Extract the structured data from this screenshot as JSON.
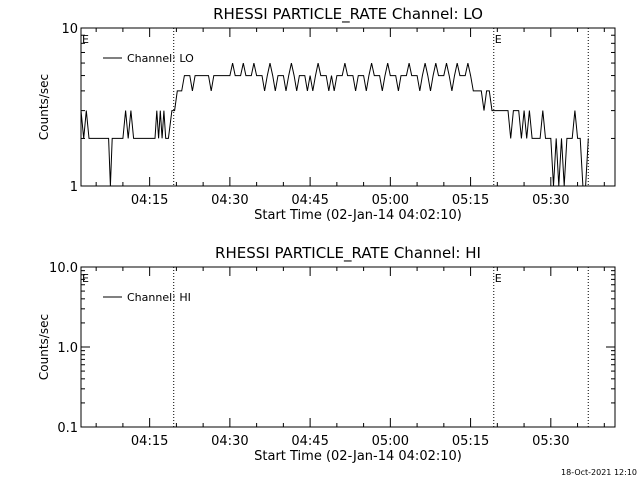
{
  "chart_data": [
    {
      "type": "line",
      "title": "RHESSI PARTICLE_RATE Channel: LO",
      "xlabel": "Start Time (02-Jan-14 04:02:10)",
      "ylabel": "Counts/sec",
      "y_scale": "log",
      "ylim": [
        1,
        10
      ],
      "y_ticks": [
        {
          "value": 1,
          "label": "1"
        },
        {
          "value": 10,
          "label": "10"
        }
      ],
      "xlim": [
        "04:02:10",
        "05:42:00"
      ],
      "x_ticks": [
        "04:15",
        "04:30",
        "04:45",
        "05:00",
        "05:15",
        "05:30"
      ],
      "legend": {
        "label": "Channel: LO",
        "position": "top-left"
      },
      "event_markers": [
        {
          "time": "04:02:10",
          "label": "E",
          "line": false
        },
        {
          "time": "04:19:30",
          "label": "",
          "line": true
        },
        {
          "time": "05:19:20",
          "label": "E",
          "line": true
        },
        {
          "time": "05:37:00",
          "label": "",
          "line": true
        }
      ],
      "series": [
        {
          "name": "Channel: LO",
          "points": [
            [
              "04:02:10",
              3
            ],
            [
              "04:02:40",
              2
            ],
            [
              "04:03:10",
              3
            ],
            [
              "04:03:40",
              2
            ],
            [
              "04:07:20",
              2
            ],
            [
              "04:07:40",
              1
            ],
            [
              "04:08:00",
              2
            ],
            [
              "04:10:00",
              2
            ],
            [
              "04:10:30",
              3
            ],
            [
              "04:11:00",
              2
            ],
            [
              "04:11:30",
              3
            ],
            [
              "04:12:00",
              2
            ],
            [
              "04:16:00",
              2
            ],
            [
              "04:16:20",
              3
            ],
            [
              "04:16:40",
              2
            ],
            [
              "04:17:00",
              3
            ],
            [
              "04:17:20",
              2
            ],
            [
              "04:17:40",
              3
            ],
            [
              "04:18:00",
              2
            ],
            [
              "04:18:30",
              2
            ],
            [
              "04:19:10",
              3
            ],
            [
              "04:19:40",
              3
            ],
            [
              "04:20:10",
              4
            ],
            [
              "04:21:00",
              4
            ],
            [
              "04:21:30",
              5
            ],
            [
              "04:22:30",
              5
            ],
            [
              "04:23:00",
              4
            ],
            [
              "04:23:30",
              5
            ],
            [
              "04:26:00",
              5
            ],
            [
              "04:26:30",
              4
            ],
            [
              "04:27:00",
              5
            ],
            [
              "04:30:00",
              5
            ],
            [
              "04:30:30",
              6
            ],
            [
              "04:31:00",
              5
            ],
            [
              "04:32:00",
              5
            ],
            [
              "04:32:30",
              6
            ],
            [
              "04:33:00",
              5
            ],
            [
              "04:34:00",
              5
            ],
            [
              "04:34:30",
              6
            ],
            [
              "04:35:00",
              5
            ],
            [
              "04:36:00",
              5
            ],
            [
              "04:36:30",
              4
            ],
            [
              "04:37:00",
              5
            ],
            [
              "04:37:30",
              6
            ],
            [
              "04:38:00",
              5
            ],
            [
              "04:38:30",
              4
            ],
            [
              "04:39:00",
              5
            ],
            [
              "04:40:00",
              5
            ],
            [
              "04:40:30",
              4
            ],
            [
              "04:41:00",
              5
            ],
            [
              "04:41:30",
              6
            ],
            [
              "04:42:00",
              5
            ],
            [
              "04:42:30",
              4
            ],
            [
              "04:43:00",
              5
            ],
            [
              "04:44:00",
              5
            ],
            [
              "04:44:30",
              4
            ],
            [
              "04:45:00",
              5
            ],
            [
              "04:45:30",
              4
            ],
            [
              "04:46:00",
              5
            ],
            [
              "04:46:30",
              6
            ],
            [
              "04:47:00",
              5
            ],
            [
              "04:48:00",
              5
            ],
            [
              "04:48:30",
              4
            ],
            [
              "04:49:00",
              5
            ],
            [
              "04:49:30",
              4
            ],
            [
              "04:50:00",
              5
            ],
            [
              "04:51:00",
              5
            ],
            [
              "04:51:30",
              6
            ],
            [
              "04:52:00",
              5
            ],
            [
              "04:53:00",
              5
            ],
            [
              "04:53:30",
              4
            ],
            [
              "04:54:00",
              5
            ],
            [
              "04:55:00",
              5
            ],
            [
              "04:55:30",
              4
            ],
            [
              "04:56:00",
              5
            ],
            [
              "04:56:30",
              6
            ],
            [
              "04:57:00",
              5
            ],
            [
              "04:58:00",
              5
            ],
            [
              "04:58:30",
              4
            ],
            [
              "04:59:00",
              5
            ],
            [
              "04:59:30",
              6
            ],
            [
              "05:00:00",
              5
            ],
            [
              "05:01:00",
              5
            ],
            [
              "05:01:30",
              4
            ],
            [
              "05:02:00",
              5
            ],
            [
              "05:03:00",
              5
            ],
            [
              "05:03:30",
              6
            ],
            [
              "05:04:00",
              5
            ],
            [
              "05:05:00",
              5
            ],
            [
              "05:05:30",
              4
            ],
            [
              "05:06:00",
              5
            ],
            [
              "05:06:30",
              6
            ],
            [
              "05:07:00",
              5
            ],
            [
              "05:07:30",
              4
            ],
            [
              "05:08:00",
              5
            ],
            [
              "05:08:30",
              6
            ],
            [
              "05:09:00",
              5
            ],
            [
              "05:10:00",
              5
            ],
            [
              "05:10:30",
              6
            ],
            [
              "05:11:00",
              5
            ],
            [
              "05:11:30",
              4
            ],
            [
              "05:12:00",
              5
            ],
            [
              "05:12:30",
              6
            ],
            [
              "05:13:00",
              5
            ],
            [
              "05:14:00",
              5
            ],
            [
              "05:14:30",
              6
            ],
            [
              "05:15:00",
              5
            ],
            [
              "05:15:30",
              4
            ],
            [
              "05:16:00",
              4
            ],
            [
              "05:17:00",
              4
            ],
            [
              "05:17:30",
              3
            ],
            [
              "05:18:00",
              4
            ],
            [
              "05:18:30",
              4
            ],
            [
              "05:19:00",
              3
            ],
            [
              "05:19:30",
              3
            ],
            [
              "05:20:00",
              3
            ],
            [
              "05:22:00",
              3
            ],
            [
              "05:22:30",
              2
            ],
            [
              "05:23:00",
              3
            ],
            [
              "05:24:00",
              3
            ],
            [
              "05:24:30",
              2
            ],
            [
              "05:25:00",
              3
            ],
            [
              "05:25:30",
              2
            ],
            [
              "05:26:00",
              3
            ],
            [
              "05:26:30",
              2
            ],
            [
              "05:27:00",
              2
            ],
            [
              "05:28:00",
              2
            ],
            [
              "05:28:30",
              3
            ],
            [
              "05:29:00",
              2
            ],
            [
              "05:30:00",
              2
            ],
            [
              "05:30:30",
              1
            ],
            [
              "05:31:00",
              2
            ],
            [
              "05:31:30",
              1
            ],
            [
              "05:32:00",
              2
            ],
            [
              "05:32:30",
              1
            ],
            [
              "05:33:00",
              2
            ],
            [
              "05:34:00",
              2
            ],
            [
              "05:34:30",
              3
            ],
            [
              "05:35:00",
              2
            ],
            [
              "05:35:30",
              2
            ],
            [
              "05:36:00",
              1
            ],
            [
              "05:36:30",
              1
            ],
            [
              "05:37:00",
              2
            ]
          ]
        }
      ]
    },
    {
      "type": "line",
      "title": "RHESSI PARTICLE_RATE Channel: HI",
      "xlabel": "Start Time (02-Jan-14 04:02:10)",
      "ylabel": "Counts/sec",
      "y_scale": "log",
      "ylim": [
        0.1,
        10
      ],
      "y_ticks": [
        {
          "value": 0.1,
          "label": "0.1"
        },
        {
          "value": 1,
          "label": "1.0"
        },
        {
          "value": 10,
          "label": "10.0"
        }
      ],
      "xlim": [
        "04:02:10",
        "05:42:00"
      ],
      "x_ticks": [
        "04:15",
        "04:30",
        "04:45",
        "05:00",
        "05:15",
        "05:30"
      ],
      "legend": {
        "label": "Channel: HI",
        "position": "top-left"
      },
      "event_markers": [
        {
          "time": "04:02:10",
          "label": "E",
          "line": false
        },
        {
          "time": "04:19:30",
          "label": "",
          "line": true
        },
        {
          "time": "05:19:20",
          "label": "E",
          "line": true
        },
        {
          "time": "05:37:00",
          "label": "",
          "line": true
        }
      ],
      "series": [
        {
          "name": "Channel: HI",
          "points": []
        }
      ]
    }
  ],
  "footer": {
    "timestamp": "18-Oct-2021 12:10"
  }
}
